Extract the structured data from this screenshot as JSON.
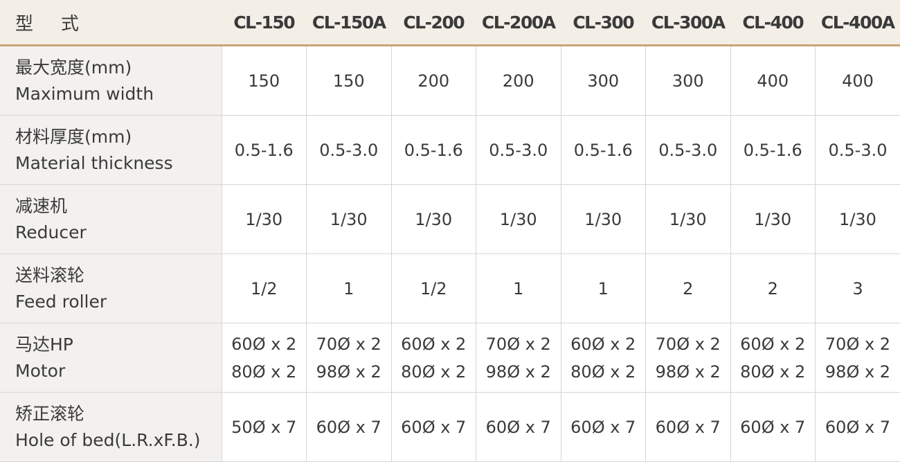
{
  "header": {
    "label": "型  式",
    "label_a": "型",
    "label_b": "式",
    "models": [
      "CL-150",
      "CL-150A",
      "CL-200",
      "CL-200A",
      "CL-300",
      "CL-300A",
      "CL-400",
      "CL-400A"
    ]
  },
  "rows": [
    {
      "zh": "最大宽度(mm)",
      "en": "Maximum width",
      "values": [
        "150",
        "150",
        "200",
        "200",
        "300",
        "300",
        "400",
        "400"
      ]
    },
    {
      "zh": "材料厚度(mm)",
      "en": "Material thickness",
      "values": [
        "0.5-1.6",
        "0.5-3.0",
        "0.5-1.6",
        "0.5-3.0",
        "0.5-1.6",
        "0.5-3.0",
        "0.5-1.6",
        "0.5-3.0"
      ]
    },
    {
      "zh": "减速机",
      "en": "Reducer",
      "values": [
        "1/30",
        "1/30",
        "1/30",
        "1/30",
        "1/30",
        "1/30",
        "1/30",
        "1/30"
      ]
    },
    {
      "zh": "送料滚轮",
      "en": "Feed roller",
      "values": [
        "1/2",
        "1",
        "1/2",
        "1",
        "1",
        "2",
        "2",
        "3"
      ]
    },
    {
      "zh": "马达HP",
      "en": "Motor",
      "values": [
        [
          "60Ø x 2",
          "80Ø x 2"
        ],
        [
          "70Ø x 2",
          "98Ø x 2"
        ],
        [
          "60Ø x 2",
          "80Ø x 2"
        ],
        [
          "70Ø x 2",
          "98Ø x 2"
        ],
        [
          "60Ø x 2",
          "80Ø x 2"
        ],
        [
          "70Ø x 2",
          "98Ø x 2"
        ],
        [
          "60Ø x 2",
          "80Ø x 2"
        ],
        [
          "70Ø x 2",
          "98Ø x 2"
        ]
      ]
    },
    {
      "zh": "矫正滚轮",
      "en": "Hole of bed(L.R.xF.B.)",
      "values": [
        "50Ø x 7",
        "60Ø x 7",
        "60Ø x 7",
        "60Ø x 7",
        "60Ø x 7",
        "60Ø x 7",
        "60Ø x 7",
        "60Ø x 7"
      ]
    }
  ]
}
